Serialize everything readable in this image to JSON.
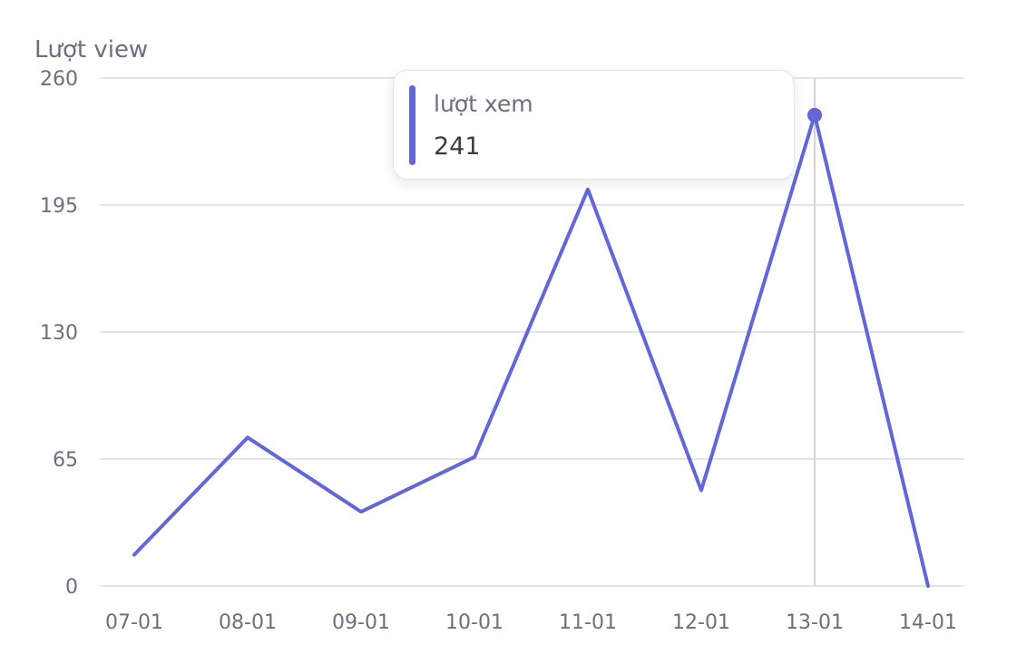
{
  "chart_data": {
    "type": "line",
    "ylabel": "Lượt view",
    "x": [
      "07-01",
      "08-01",
      "09-01",
      "10-01",
      "11-01",
      "12-01",
      "13-01",
      "14-01"
    ],
    "series": [
      {
        "name": "lượt xem",
        "values": [
          16,
          76,
          38,
          66,
          203,
          49,
          241,
          0
        ]
      }
    ],
    "ylim": [
      0,
      260
    ],
    "yticks": [
      0,
      65,
      130,
      195,
      260
    ],
    "grid": true,
    "line_color": "#6366d9",
    "highlight_index": 6
  },
  "tooltip": {
    "label": "lượt xem",
    "value": "241"
  }
}
